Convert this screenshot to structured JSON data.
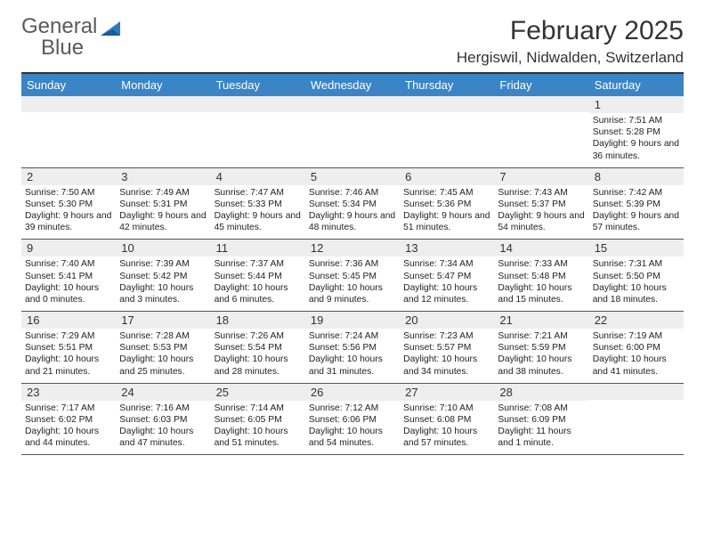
{
  "logo": {
    "word1": "General",
    "word2": "Blue"
  },
  "brand_colors": {
    "gray": "#5a5a5a",
    "blue": "#2b7bbf",
    "header_bg": "#3b85c6"
  },
  "title": {
    "month": "February 2025",
    "location": "Hergiswil, Nidwalden, Switzerland"
  },
  "day_headers": [
    "Sunday",
    "Monday",
    "Tuesday",
    "Wednesday",
    "Thursday",
    "Friday",
    "Saturday"
  ],
  "weeks": [
    [
      {
        "day": "",
        "sunrise": "",
        "sunset": "",
        "daylight": ""
      },
      {
        "day": "",
        "sunrise": "",
        "sunset": "",
        "daylight": ""
      },
      {
        "day": "",
        "sunrise": "",
        "sunset": "",
        "daylight": ""
      },
      {
        "day": "",
        "sunrise": "",
        "sunset": "",
        "daylight": ""
      },
      {
        "day": "",
        "sunrise": "",
        "sunset": "",
        "daylight": ""
      },
      {
        "day": "",
        "sunrise": "",
        "sunset": "",
        "daylight": ""
      },
      {
        "day": "1",
        "sunrise": "Sunrise: 7:51 AM",
        "sunset": "Sunset: 5:28 PM",
        "daylight": "Daylight: 9 hours and 36 minutes."
      }
    ],
    [
      {
        "day": "2",
        "sunrise": "Sunrise: 7:50 AM",
        "sunset": "Sunset: 5:30 PM",
        "daylight": "Daylight: 9 hours and 39 minutes."
      },
      {
        "day": "3",
        "sunrise": "Sunrise: 7:49 AM",
        "sunset": "Sunset: 5:31 PM",
        "daylight": "Daylight: 9 hours and 42 minutes."
      },
      {
        "day": "4",
        "sunrise": "Sunrise: 7:47 AM",
        "sunset": "Sunset: 5:33 PM",
        "daylight": "Daylight: 9 hours and 45 minutes."
      },
      {
        "day": "5",
        "sunrise": "Sunrise: 7:46 AM",
        "sunset": "Sunset: 5:34 PM",
        "daylight": "Daylight: 9 hours and 48 minutes."
      },
      {
        "day": "6",
        "sunrise": "Sunrise: 7:45 AM",
        "sunset": "Sunset: 5:36 PM",
        "daylight": "Daylight: 9 hours and 51 minutes."
      },
      {
        "day": "7",
        "sunrise": "Sunrise: 7:43 AM",
        "sunset": "Sunset: 5:37 PM",
        "daylight": "Daylight: 9 hours and 54 minutes."
      },
      {
        "day": "8",
        "sunrise": "Sunrise: 7:42 AM",
        "sunset": "Sunset: 5:39 PM",
        "daylight": "Daylight: 9 hours and 57 minutes."
      }
    ],
    [
      {
        "day": "9",
        "sunrise": "Sunrise: 7:40 AM",
        "sunset": "Sunset: 5:41 PM",
        "daylight": "Daylight: 10 hours and 0 minutes."
      },
      {
        "day": "10",
        "sunrise": "Sunrise: 7:39 AM",
        "sunset": "Sunset: 5:42 PM",
        "daylight": "Daylight: 10 hours and 3 minutes."
      },
      {
        "day": "11",
        "sunrise": "Sunrise: 7:37 AM",
        "sunset": "Sunset: 5:44 PM",
        "daylight": "Daylight: 10 hours and 6 minutes."
      },
      {
        "day": "12",
        "sunrise": "Sunrise: 7:36 AM",
        "sunset": "Sunset: 5:45 PM",
        "daylight": "Daylight: 10 hours and 9 minutes."
      },
      {
        "day": "13",
        "sunrise": "Sunrise: 7:34 AM",
        "sunset": "Sunset: 5:47 PM",
        "daylight": "Daylight: 10 hours and 12 minutes."
      },
      {
        "day": "14",
        "sunrise": "Sunrise: 7:33 AM",
        "sunset": "Sunset: 5:48 PM",
        "daylight": "Daylight: 10 hours and 15 minutes."
      },
      {
        "day": "15",
        "sunrise": "Sunrise: 7:31 AM",
        "sunset": "Sunset: 5:50 PM",
        "daylight": "Daylight: 10 hours and 18 minutes."
      }
    ],
    [
      {
        "day": "16",
        "sunrise": "Sunrise: 7:29 AM",
        "sunset": "Sunset: 5:51 PM",
        "daylight": "Daylight: 10 hours and 21 minutes."
      },
      {
        "day": "17",
        "sunrise": "Sunrise: 7:28 AM",
        "sunset": "Sunset: 5:53 PM",
        "daylight": "Daylight: 10 hours and 25 minutes."
      },
      {
        "day": "18",
        "sunrise": "Sunrise: 7:26 AM",
        "sunset": "Sunset: 5:54 PM",
        "daylight": "Daylight: 10 hours and 28 minutes."
      },
      {
        "day": "19",
        "sunrise": "Sunrise: 7:24 AM",
        "sunset": "Sunset: 5:56 PM",
        "daylight": "Daylight: 10 hours and 31 minutes."
      },
      {
        "day": "20",
        "sunrise": "Sunrise: 7:23 AM",
        "sunset": "Sunset: 5:57 PM",
        "daylight": "Daylight: 10 hours and 34 minutes."
      },
      {
        "day": "21",
        "sunrise": "Sunrise: 7:21 AM",
        "sunset": "Sunset: 5:59 PM",
        "daylight": "Daylight: 10 hours and 38 minutes."
      },
      {
        "day": "22",
        "sunrise": "Sunrise: 7:19 AM",
        "sunset": "Sunset: 6:00 PM",
        "daylight": "Daylight: 10 hours and 41 minutes."
      }
    ],
    [
      {
        "day": "23",
        "sunrise": "Sunrise: 7:17 AM",
        "sunset": "Sunset: 6:02 PM",
        "daylight": "Daylight: 10 hours and 44 minutes."
      },
      {
        "day": "24",
        "sunrise": "Sunrise: 7:16 AM",
        "sunset": "Sunset: 6:03 PM",
        "daylight": "Daylight: 10 hours and 47 minutes."
      },
      {
        "day": "25",
        "sunrise": "Sunrise: 7:14 AM",
        "sunset": "Sunset: 6:05 PM",
        "daylight": "Daylight: 10 hours and 51 minutes."
      },
      {
        "day": "26",
        "sunrise": "Sunrise: 7:12 AM",
        "sunset": "Sunset: 6:06 PM",
        "daylight": "Daylight: 10 hours and 54 minutes."
      },
      {
        "day": "27",
        "sunrise": "Sunrise: 7:10 AM",
        "sunset": "Sunset: 6:08 PM",
        "daylight": "Daylight: 10 hours and 57 minutes."
      },
      {
        "day": "28",
        "sunrise": "Sunrise: 7:08 AM",
        "sunset": "Sunset: 6:09 PM",
        "daylight": "Daylight: 11 hours and 1 minute."
      },
      {
        "day": "",
        "sunrise": "",
        "sunset": "",
        "daylight": ""
      }
    ]
  ]
}
